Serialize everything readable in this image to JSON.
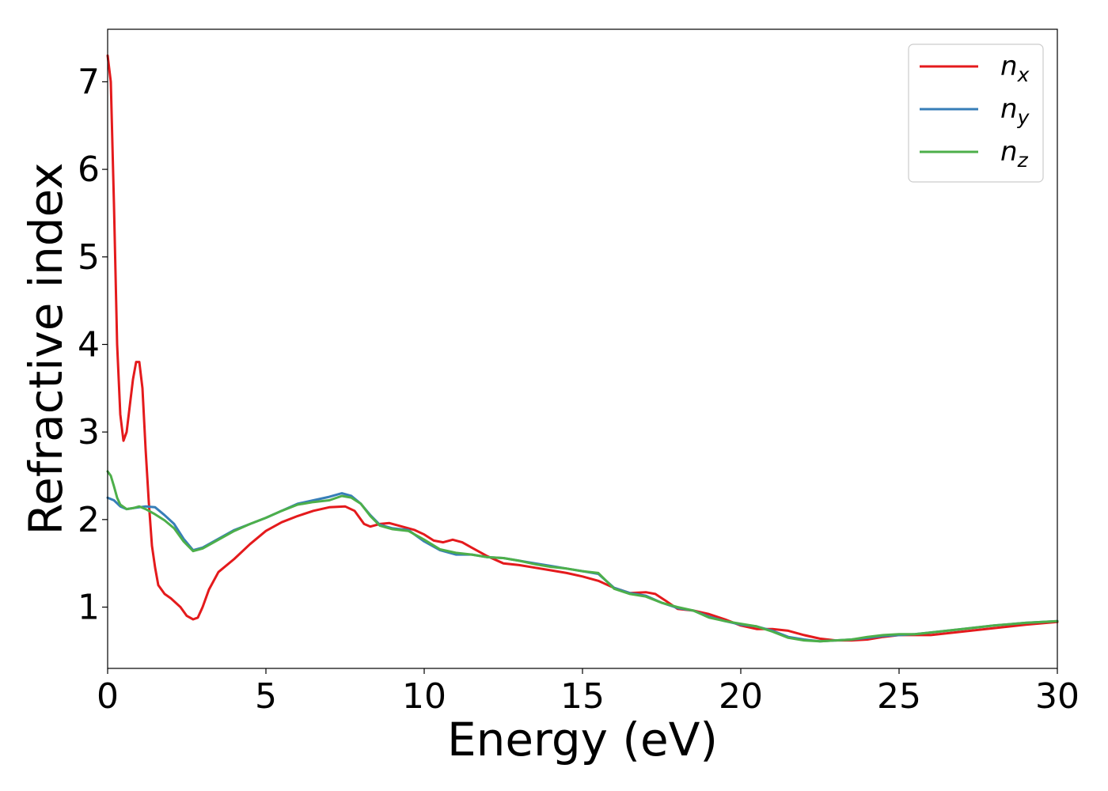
{
  "chart_data": {
    "type": "line",
    "title": "",
    "xlabel": "Energy (eV)",
    "ylabel": "Refractive index",
    "xlim": [
      0,
      30
    ],
    "ylim": [
      0.3,
      7.6
    ],
    "xticks": [
      0,
      5,
      10,
      15,
      20,
      25,
      30
    ],
    "xtick_labels": [
      "0",
      "5",
      "10",
      "15",
      "20",
      "25",
      "30"
    ],
    "yticks": [
      1,
      2,
      3,
      4,
      5,
      6,
      7
    ],
    "ytick_labels": [
      "1",
      "2",
      "3",
      "4",
      "5",
      "6",
      "7"
    ],
    "grid": false,
    "legend_position": "top-right",
    "series": [
      {
        "name": "n_x",
        "label_base": "n",
        "label_sub": "x",
        "color": "#e41a1c",
        "x": [
          0,
          0.1,
          0.2,
          0.3,
          0.4,
          0.5,
          0.6,
          0.7,
          0.8,
          0.9,
          1.0,
          1.1,
          1.2,
          1.3,
          1.4,
          1.5,
          1.6,
          1.8,
          2.0,
          2.3,
          2.5,
          2.7,
          2.85,
          3.0,
          3.2,
          3.5,
          4.0,
          4.5,
          5.0,
          5.5,
          6.0,
          6.5,
          7.0,
          7.5,
          7.8,
          8.1,
          8.3,
          8.6,
          8.9,
          9.3,
          9.7,
          10.0,
          10.3,
          10.6,
          10.9,
          11.2,
          11.5,
          12.0,
          12.5,
          13.0,
          13.5,
          14.0,
          14.5,
          15.0,
          15.5,
          16.0,
          16.5,
          17.0,
          17.3,
          17.6,
          18.0,
          18.5,
          19.0,
          19.5,
          20.0,
          20.5,
          21.0,
          21.5,
          22.0,
          22.5,
          23.0,
          23.5,
          24.0,
          24.5,
          25.0,
          25.5,
          26.0,
          27.0,
          28.0,
          29.0,
          30.0
        ],
        "y": [
          7.3,
          7.0,
          5.6,
          4.0,
          3.2,
          2.9,
          3.0,
          3.3,
          3.6,
          3.8,
          3.8,
          3.5,
          2.8,
          2.2,
          1.7,
          1.45,
          1.25,
          1.15,
          1.1,
          1.0,
          0.9,
          0.86,
          0.88,
          1.0,
          1.2,
          1.4,
          1.55,
          1.72,
          1.87,
          1.97,
          2.04,
          2.1,
          2.14,
          2.15,
          2.1,
          1.95,
          1.92,
          1.95,
          1.96,
          1.92,
          1.88,
          1.83,
          1.76,
          1.74,
          1.77,
          1.74,
          1.68,
          1.58,
          1.5,
          1.48,
          1.45,
          1.42,
          1.39,
          1.35,
          1.3,
          1.22,
          1.16,
          1.17,
          1.15,
          1.08,
          0.98,
          0.96,
          0.92,
          0.86,
          0.79,
          0.75,
          0.75,
          0.73,
          0.68,
          0.64,
          0.62,
          0.62,
          0.63,
          0.66,
          0.68,
          0.68,
          0.68,
          0.72,
          0.76,
          0.8,
          0.83
        ]
      },
      {
        "name": "n_y",
        "label_base": "n",
        "label_sub": "y",
        "color": "#377eb8",
        "x": [
          0,
          0.2,
          0.4,
          0.6,
          0.8,
          1.0,
          1.2,
          1.5,
          1.8,
          2.1,
          2.4,
          2.7,
          3.0,
          3.5,
          4.0,
          4.5,
          5.0,
          5.5,
          6.0,
          6.5,
          7.0,
          7.4,
          7.7,
          8.0,
          8.3,
          8.6,
          9.0,
          9.5,
          10.0,
          10.5,
          11.0,
          11.5,
          12.0,
          12.5,
          13.0,
          13.5,
          14.0,
          14.5,
          15.0,
          15.5,
          16.0,
          16.5,
          17.0,
          17.5,
          18.0,
          18.5,
          19.0,
          19.5,
          20.0,
          20.5,
          21.0,
          21.5,
          22.0,
          22.5,
          23.0,
          23.5,
          24.0,
          24.5,
          25.0,
          25.5,
          26.0,
          27.0,
          28.0,
          29.0,
          30.0
        ],
        "y": [
          2.25,
          2.22,
          2.15,
          2.12,
          2.13,
          2.14,
          2.15,
          2.14,
          2.05,
          1.95,
          1.78,
          1.65,
          1.68,
          1.78,
          1.88,
          1.95,
          2.02,
          2.1,
          2.18,
          2.22,
          2.26,
          2.3,
          2.27,
          2.18,
          2.05,
          1.94,
          1.9,
          1.88,
          1.75,
          1.65,
          1.6,
          1.6,
          1.57,
          1.56,
          1.53,
          1.5,
          1.47,
          1.44,
          1.41,
          1.38,
          1.22,
          1.16,
          1.13,
          1.05,
          0.99,
          0.96,
          0.89,
          0.84,
          0.8,
          0.78,
          0.73,
          0.66,
          0.63,
          0.61,
          0.62,
          0.63,
          0.65,
          0.67,
          0.68,
          0.69,
          0.71,
          0.75,
          0.79,
          0.82,
          0.84
        ]
      },
      {
        "name": "n_z",
        "label_base": "n",
        "label_sub": "z",
        "color": "#4daf4a",
        "x": [
          0,
          0.1,
          0.2,
          0.3,
          0.4,
          0.6,
          0.8,
          1.0,
          1.2,
          1.5,
          1.8,
          2.1,
          2.4,
          2.7,
          3.0,
          3.5,
          4.0,
          4.5,
          5.0,
          5.5,
          6.0,
          6.5,
          7.0,
          7.4,
          7.7,
          8.0,
          8.3,
          8.6,
          9.0,
          9.5,
          10.0,
          10.5,
          11.0,
          11.5,
          12.0,
          12.5,
          13.0,
          13.5,
          14.0,
          14.5,
          15.0,
          15.5,
          16.0,
          16.5,
          17.0,
          17.5,
          18.0,
          18.5,
          19.0,
          19.5,
          20.0,
          20.5,
          21.0,
          21.5,
          22.0,
          22.5,
          23.0,
          23.5,
          24.0,
          24.5,
          25.0,
          25.5,
          26.0,
          27.0,
          28.0,
          29.0,
          30.0
        ],
        "y": [
          2.55,
          2.5,
          2.38,
          2.25,
          2.17,
          2.12,
          2.13,
          2.15,
          2.12,
          2.06,
          1.99,
          1.9,
          1.75,
          1.64,
          1.67,
          1.77,
          1.87,
          1.95,
          2.02,
          2.1,
          2.17,
          2.2,
          2.22,
          2.27,
          2.25,
          2.18,
          2.04,
          1.93,
          1.89,
          1.87,
          1.77,
          1.66,
          1.62,
          1.6,
          1.57,
          1.56,
          1.53,
          1.49,
          1.46,
          1.44,
          1.41,
          1.39,
          1.21,
          1.15,
          1.12,
          1.05,
          1.0,
          0.96,
          0.88,
          0.84,
          0.81,
          0.78,
          0.72,
          0.65,
          0.62,
          0.61,
          0.62,
          0.63,
          0.66,
          0.68,
          0.69,
          0.69,
          0.71,
          0.75,
          0.79,
          0.82,
          0.84
        ]
      }
    ]
  }
}
